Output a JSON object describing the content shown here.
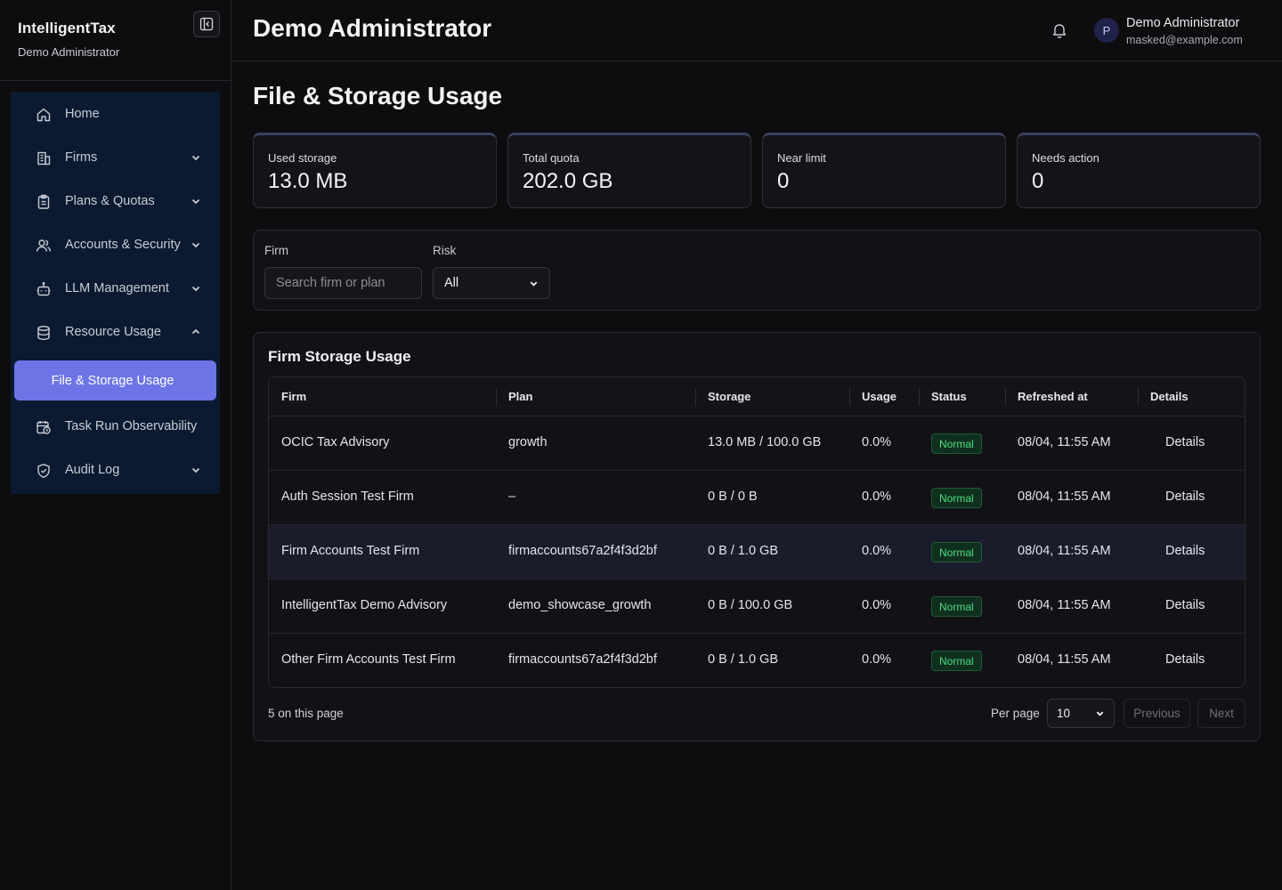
{
  "brand": {
    "name": "IntelligentTax",
    "subtitle": "Demo Administrator"
  },
  "nav": {
    "items": [
      {
        "label": "Home",
        "icon": "home-icon",
        "chevron": false
      },
      {
        "label": "Firms",
        "icon": "building-icon",
        "chevron": "down"
      },
      {
        "label": "Plans & Quotas",
        "icon": "clipboard-icon",
        "chevron": "down"
      },
      {
        "label": "Accounts & Security",
        "icon": "users-icon",
        "chevron": "down"
      },
      {
        "label": "LLM Management",
        "icon": "bot-icon",
        "chevron": "down"
      },
      {
        "label": "Resource Usage",
        "icon": "database-icon",
        "chevron": "up"
      },
      {
        "label": "Task Run Observability",
        "icon": "calendar-clock-icon",
        "chevron": false
      },
      {
        "label": "Audit Log",
        "icon": "shield-check-icon",
        "chevron": "down"
      }
    ],
    "active_sub": "File & Storage Usage"
  },
  "header": {
    "title": "Demo Administrator",
    "user": {
      "initial": "P",
      "name": "Demo Administrator",
      "email": "masked@example.com"
    }
  },
  "page": {
    "title": "File & Storage Usage"
  },
  "stats": [
    {
      "label": "Used storage",
      "value": "13.0 MB"
    },
    {
      "label": "Total quota",
      "value": "202.0 GB"
    },
    {
      "label": "Near limit",
      "value": "0"
    },
    {
      "label": "Needs action",
      "value": "0"
    }
  ],
  "filters": {
    "firm_label": "Firm",
    "firm_placeholder": "Search firm or plan",
    "risk_label": "Risk",
    "risk_value": "All"
  },
  "table": {
    "title": "Firm Storage Usage",
    "columns": [
      "Firm",
      "Plan",
      "Storage",
      "Usage",
      "Status",
      "Refreshed at",
      "Details"
    ],
    "rows": [
      {
        "firm": "OCIC Tax Advisory",
        "plan": "growth",
        "storage": "13.0 MB / 100.0 GB",
        "usage": "0.0%",
        "status": "Normal",
        "refreshed": "08/04, 11:55 AM",
        "details": "Details"
      },
      {
        "firm": "Auth Session Test Firm",
        "plan": "–",
        "storage": "0 B / 0 B",
        "usage": "0.0%",
        "status": "Normal",
        "refreshed": "08/04, 11:55 AM",
        "details": "Details"
      },
      {
        "firm": "Firm Accounts Test Firm",
        "plan": "firmaccounts67a2f4f3d2bf",
        "storage": "0 B / 1.0 GB",
        "usage": "0.0%",
        "status": "Normal",
        "refreshed": "08/04, 11:55 AM",
        "details": "Details"
      },
      {
        "firm": "IntelligentTax Demo Advisory",
        "plan": "demo_showcase_growth",
        "storage": "0 B / 100.0 GB",
        "usage": "0.0%",
        "status": "Normal",
        "refreshed": "08/04, 11:55 AM",
        "details": "Details"
      },
      {
        "firm": "Other Firm Accounts Test Firm",
        "plan": "firmaccounts67a2f4f3d2bf",
        "storage": "0 B / 1.0 GB",
        "usage": "0.0%",
        "status": "Normal",
        "refreshed": "08/04, 11:55 AM",
        "details": "Details"
      }
    ]
  },
  "pagination": {
    "count_text": "5 on this page",
    "per_page_label": "Per page",
    "per_page_value": "10",
    "previous": "Previous",
    "next": "Next"
  },
  "colors": {
    "accent": "#6c74e6",
    "nav_bg": "#0b1a30",
    "status_normal": "#4ade80",
    "background": "#0d0d0f"
  }
}
